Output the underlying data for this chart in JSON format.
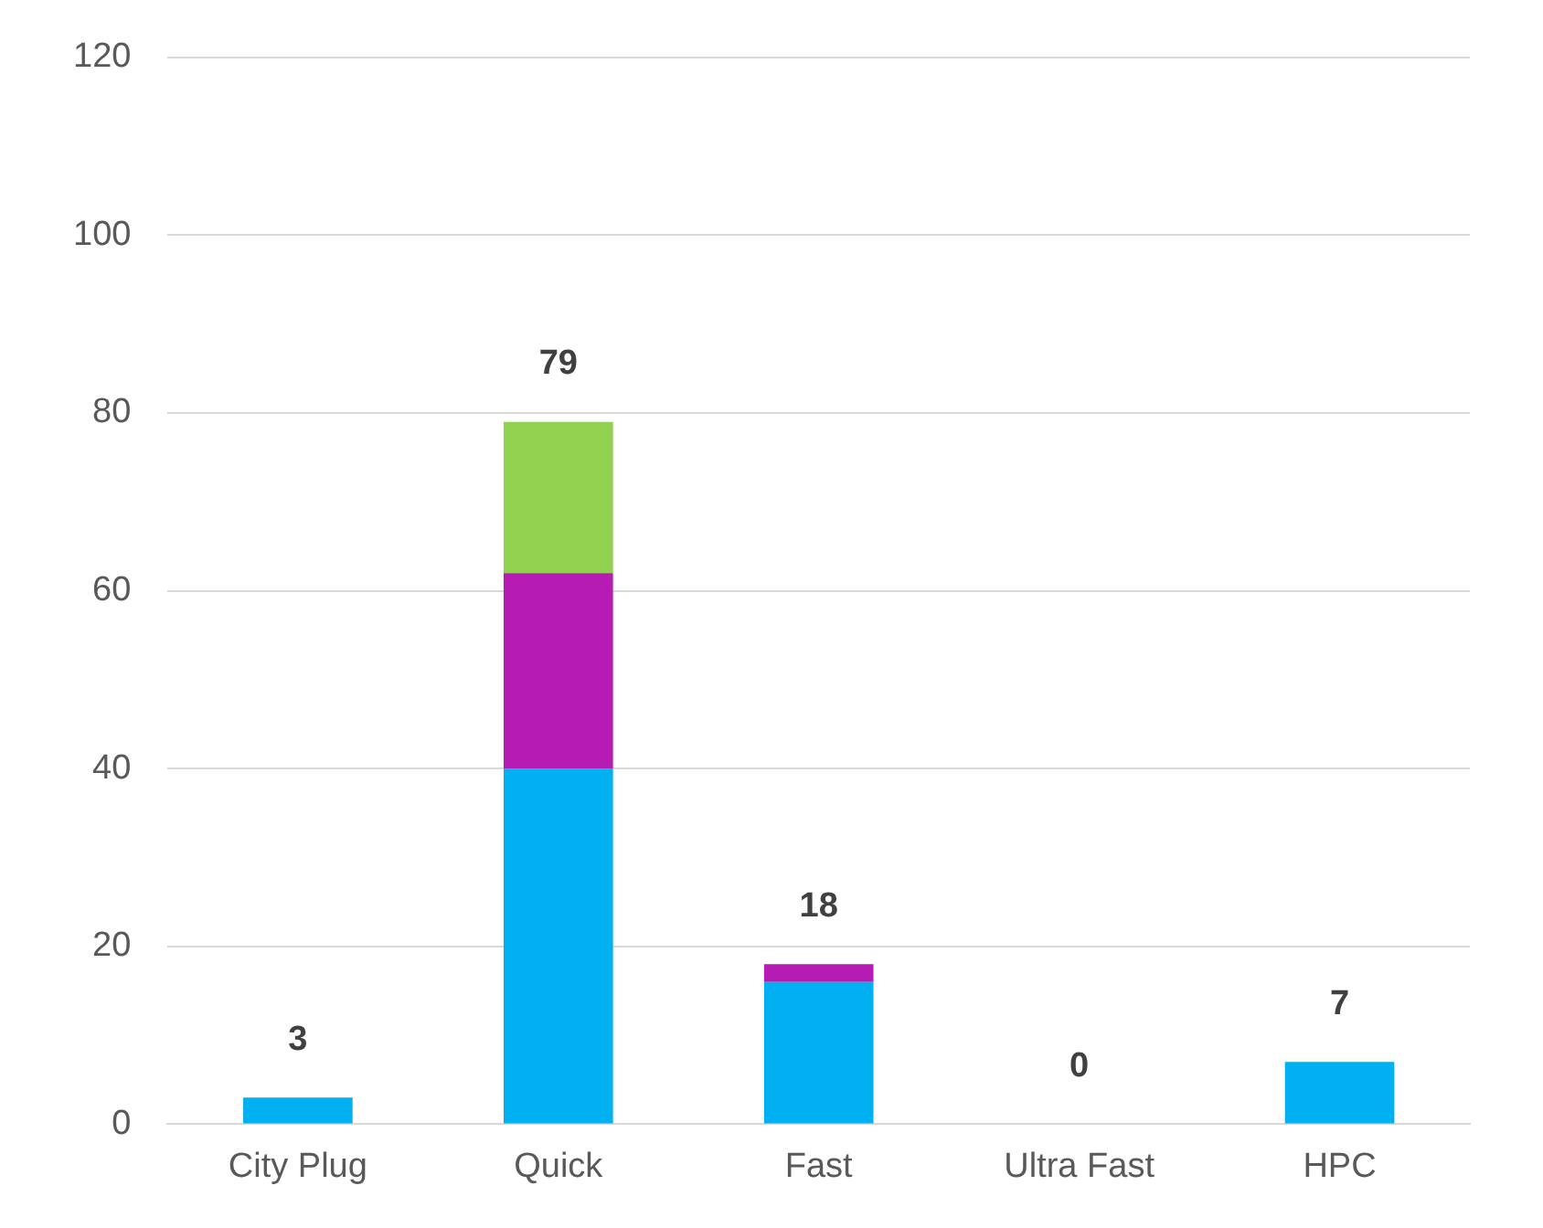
{
  "chart_data": {
    "type": "bar",
    "stacked": true,
    "categories": [
      "City Plug",
      "Quick",
      "Fast",
      "Ultra Fast",
      "HPC"
    ],
    "series": [
      {
        "color": "#00b0f0",
        "values": [
          3,
          40,
          16,
          0,
          7
        ]
      },
      {
        "color": "#b61bb3",
        "values": [
          0,
          22,
          2,
          0,
          0
        ]
      },
      {
        "color": "#92d050",
        "values": [
          0,
          17,
          0,
          0,
          0
        ]
      }
    ],
    "totals": [
      "3",
      "79",
      "18",
      "0",
      "7"
    ],
    "ylim": [
      0,
      120
    ],
    "yticks": [
      0,
      20,
      40,
      60,
      80,
      100,
      120
    ],
    "grid": "y",
    "legend": false
  }
}
